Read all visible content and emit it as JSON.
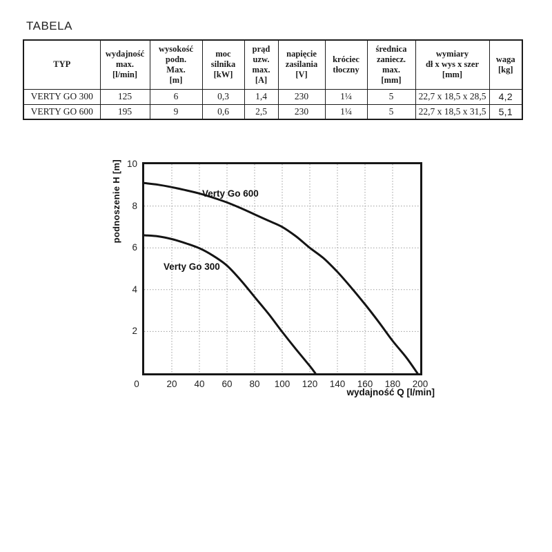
{
  "page": {
    "title": "TABELA"
  },
  "table": {
    "headers": [
      "TYP",
      "wydajność\nmax.\n[l/min]",
      "wysokość\npodn.\nMax.\n[m]",
      "moc\nsilnika\n[kW]",
      "prąd\nuzw.\nmax.\n[A]",
      "napięcie\nzasilania\n[V]",
      "króciec\ntłoczny",
      "średnica\nzaniecz.\nmax.\n[mm]",
      "wymiary\ndł x wys x szer\n[mm]",
      "waga\n[kg]"
    ],
    "rows": [
      {
        "cells": [
          "VERTY GO 300",
          "125",
          "6",
          "0,3",
          "1,4",
          "230",
          "1¼",
          "5",
          "22,7 x 18,5 x 28,5",
          "4,2"
        ]
      },
      {
        "cells": [
          "VERTY GO 600",
          "195",
          "9",
          "0,6",
          "2,5",
          "230",
          "1¼",
          "5",
          "22,7 x 18,5 x 31,5",
          "5,1"
        ]
      }
    ]
  },
  "chart_data": {
    "type": "line",
    "title": "",
    "xlabel": "wydajność Q [l/min]",
    "ylabel": "podnoszenie H [m]",
    "xlim": [
      0,
      200
    ],
    "ylim": [
      0,
      10
    ],
    "x_ticks": [
      0,
      20,
      40,
      60,
      80,
      100,
      120,
      140,
      160,
      180,
      200
    ],
    "y_ticks": [
      2,
      4,
      6,
      8,
      10
    ],
    "grid": "dotted",
    "legend_position": "inline-labels",
    "colors": {
      "curve": "#141414",
      "grid": "#9b9b9b",
      "text": "#111111"
    },
    "series": [
      {
        "name": "Verty Go 600",
        "label_at": [
          42,
          8.45
        ],
        "points": [
          [
            0,
            9.1
          ],
          [
            10,
            9.02
          ],
          [
            20,
            8.9
          ],
          [
            30,
            8.76
          ],
          [
            40,
            8.6
          ],
          [
            50,
            8.4
          ],
          [
            60,
            8.17
          ],
          [
            70,
            7.9
          ],
          [
            80,
            7.6
          ],
          [
            90,
            7.3
          ],
          [
            100,
            7.0
          ],
          [
            110,
            6.55
          ],
          [
            120,
            6.0
          ],
          [
            130,
            5.5
          ],
          [
            140,
            4.85
          ],
          [
            150,
            4.1
          ],
          [
            160,
            3.3
          ],
          [
            170,
            2.45
          ],
          [
            180,
            1.55
          ],
          [
            190,
            0.75
          ],
          [
            198,
            0
          ]
        ]
      },
      {
        "name": "Verty Go 300",
        "label_at": [
          14,
          4.95
        ],
        "points": [
          [
            0,
            6.6
          ],
          [
            10,
            6.55
          ],
          [
            20,
            6.42
          ],
          [
            30,
            6.22
          ],
          [
            40,
            5.98
          ],
          [
            50,
            5.62
          ],
          [
            60,
            5.15
          ],
          [
            70,
            4.45
          ],
          [
            80,
            3.65
          ],
          [
            90,
            2.85
          ],
          [
            100,
            1.98
          ],
          [
            110,
            1.15
          ],
          [
            120,
            0.35
          ],
          [
            124,
            0
          ]
        ]
      }
    ]
  }
}
